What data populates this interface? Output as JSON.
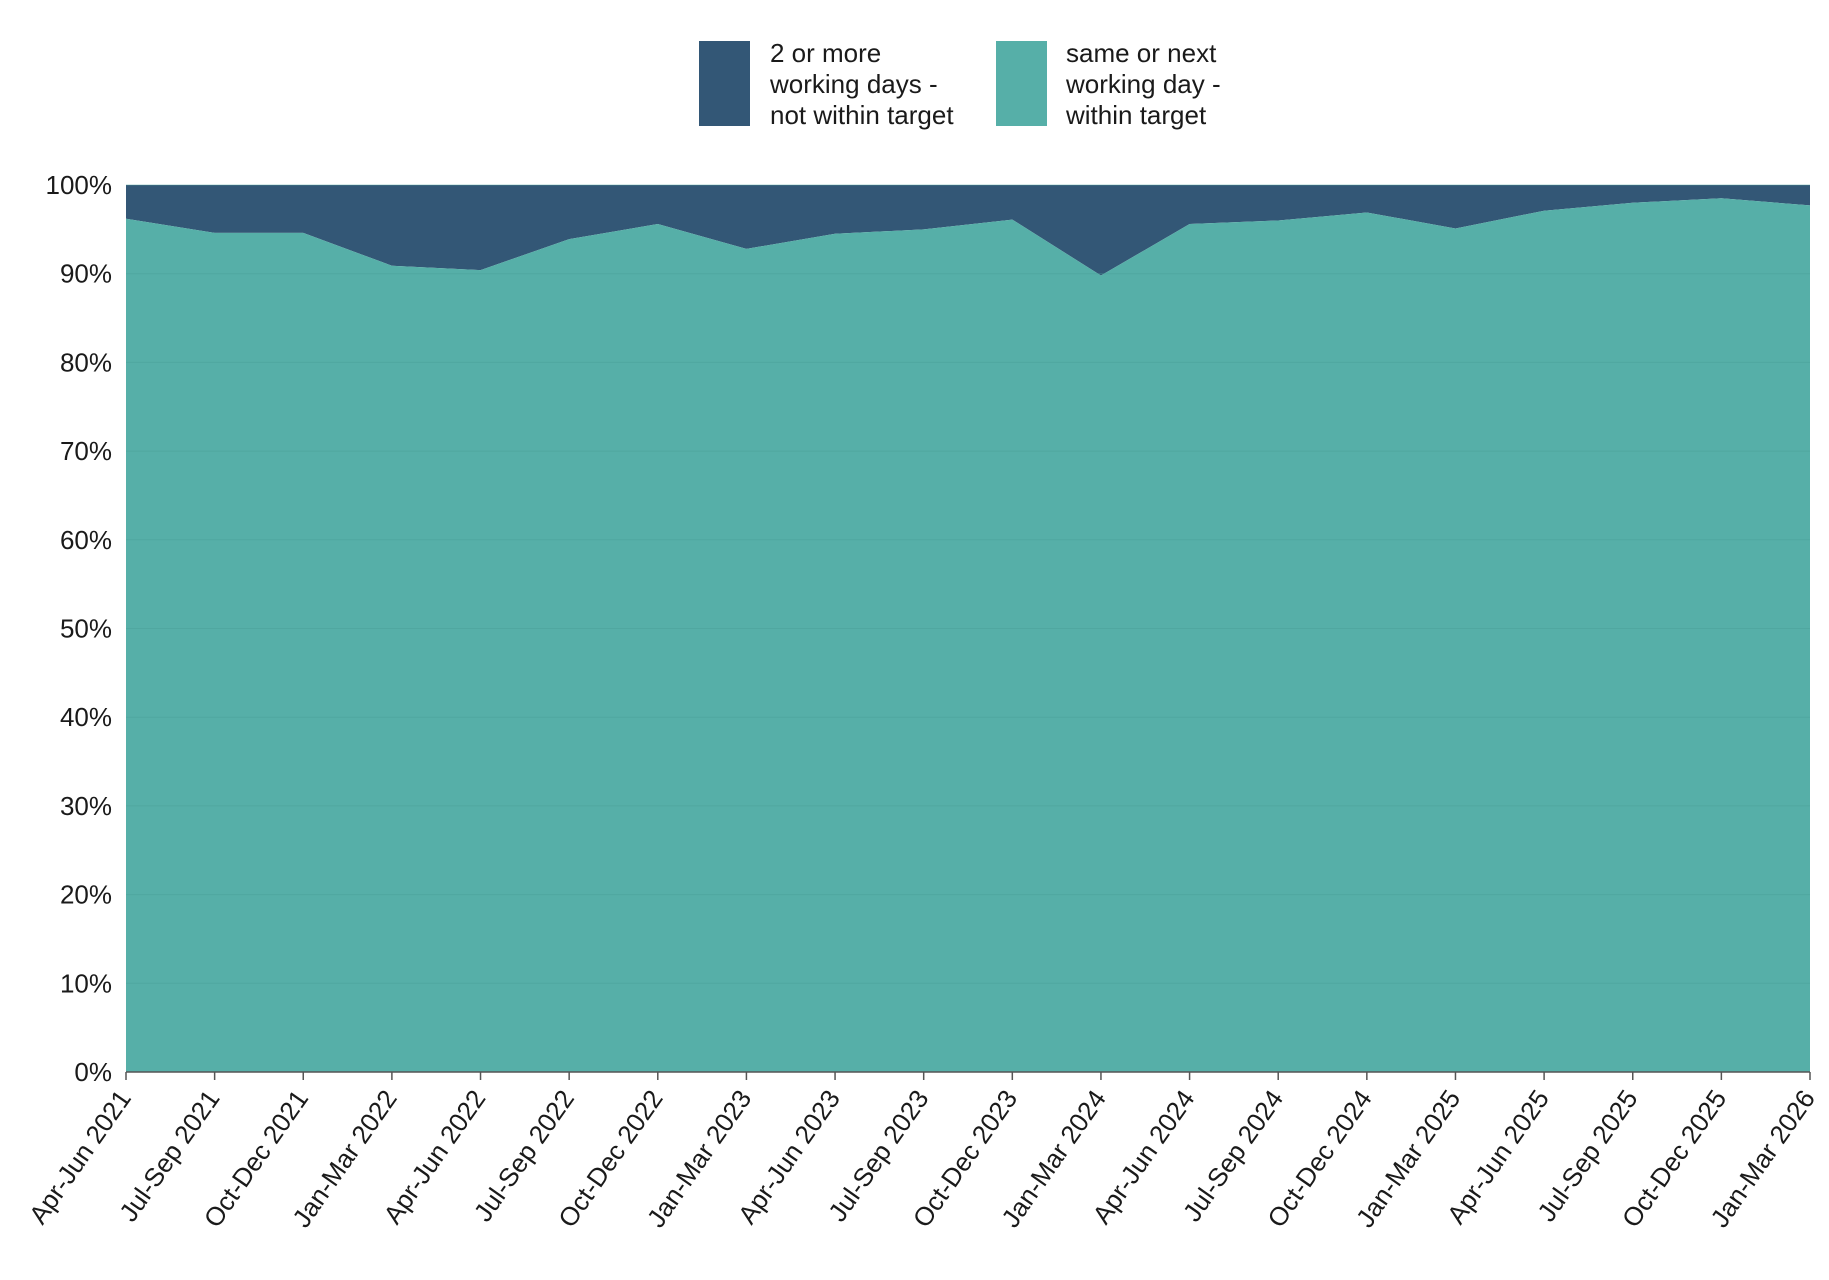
{
  "chart_data": {
    "type": "area",
    "stacked": true,
    "categories": [
      "Apr-Jun 2021",
      "Jul-Sep 2021",
      "Oct-Dec 2021",
      "Jan-Mar 2022",
      "Apr-Jun 2022",
      "Jul-Sep 2022",
      "Oct-Dec 2022",
      "Jan-Mar 2023",
      "Apr-Jun 2023",
      "Jul-Sep 2023",
      "Oct-Dec 2023",
      "Jan-Mar 2024",
      "Apr-Jun 2024",
      "Jul-Sep 2024",
      "Oct-Dec 2024",
      "Jan-Mar 2025",
      "Apr-Jun 2025",
      "Jul-Sep 2025",
      "Oct-Dec 2025",
      "Jan-Mar 2026"
    ],
    "series": [
      {
        "name": "same or next working day - within target",
        "legend_lines": [
          "same or next",
          "working day -",
          "within target"
        ],
        "color": "#56AFA8",
        "values": [
          96.2,
          94.6,
          94.6,
          90.9,
          90.4,
          93.9,
          95.6,
          92.8,
          94.5,
          95.0,
          96.1,
          89.8,
          95.6,
          96.0,
          96.9,
          95.1,
          97.1,
          98.0,
          98.5,
          97.7
        ]
      },
      {
        "name": "2 or more working days - not within target",
        "legend_lines": [
          "2 or more",
          "working days -",
          "not within target"
        ],
        "color": "#335776",
        "values": [
          3.8,
          5.4,
          5.4,
          9.1,
          9.6,
          6.1,
          4.4,
          7.2,
          5.5,
          5.0,
          3.9,
          10.2,
          4.4,
          4.0,
          3.1,
          4.9,
          2.9,
          2.0,
          1.5,
          2.3
        ]
      }
    ],
    "yticks": [
      "0%",
      "10%",
      "20%",
      "30%",
      "40%",
      "50%",
      "60%",
      "70%",
      "80%",
      "90%",
      "100%"
    ],
    "ylim": [
      0,
      100
    ],
    "grid": true,
    "legend_position": "top-center",
    "title": "",
    "xlabel": "",
    "ylabel": ""
  }
}
